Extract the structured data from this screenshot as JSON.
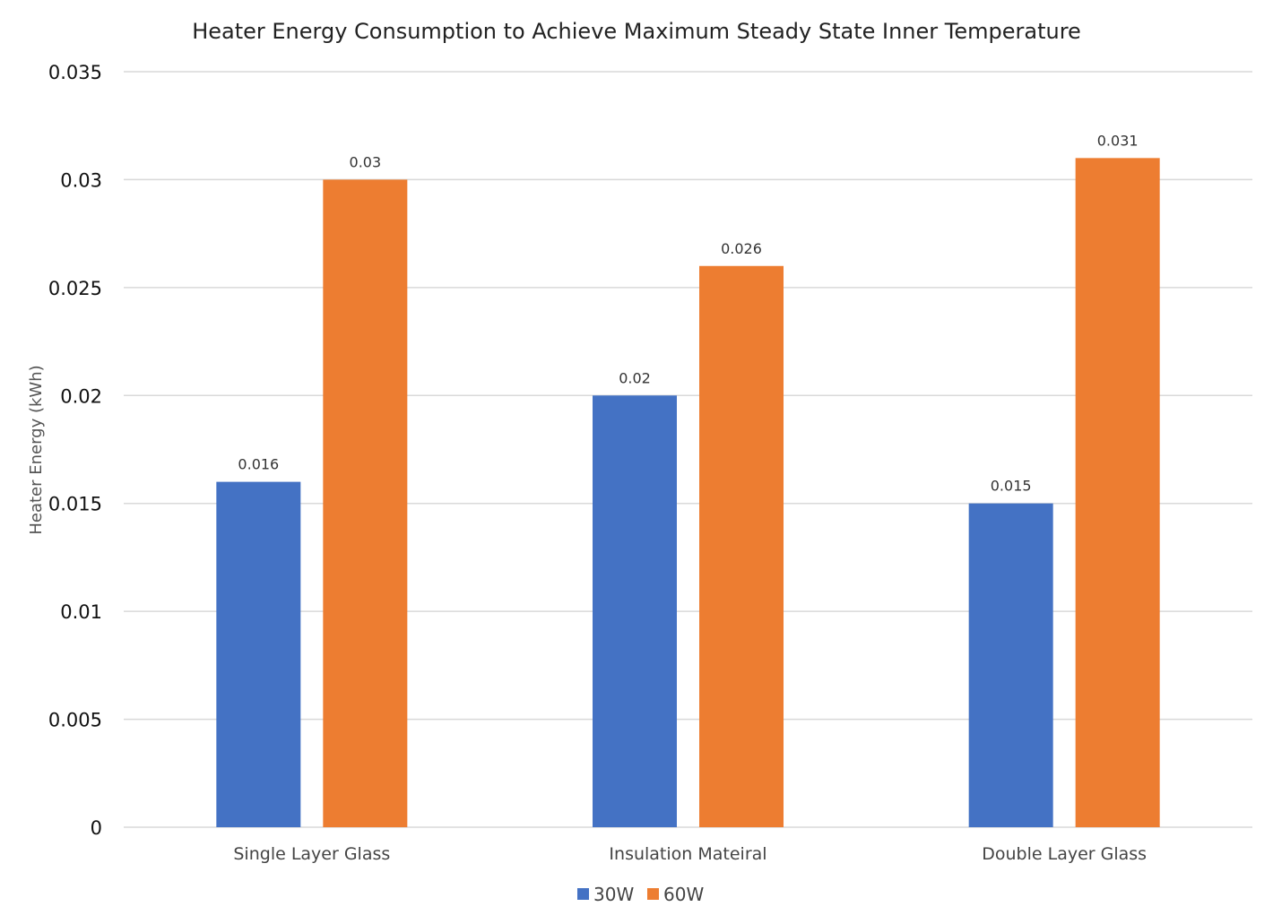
{
  "chart_data": {
    "type": "bar",
    "title": "Heater Energy Consumption to Achieve Maximum Steady State Inner Temperature",
    "xlabel": "",
    "ylabel": "Heater Energy (kWh)",
    "ylim": [
      0,
      0.035
    ],
    "yticks": [
      "0",
      "0.005",
      "0.01",
      "0.015",
      "0.02",
      "0.025",
      "0.03",
      "0.035"
    ],
    "grid": true,
    "legend_position": "bottom",
    "categories": [
      "Single Layer Glass",
      "Insulation Mateiral",
      "Double Layer Glass"
    ],
    "series": [
      {
        "name": "30W",
        "color": "#4472C4",
        "values": [
          0.016,
          0.02,
          0.015
        ],
        "labels": [
          "0.016",
          "0.02",
          "0.015"
        ]
      },
      {
        "name": "60W",
        "color": "#ED7D31",
        "values": [
          0.03,
          0.026,
          0.031
        ],
        "labels": [
          "0.03",
          "0.026",
          "0.031"
        ]
      }
    ]
  }
}
